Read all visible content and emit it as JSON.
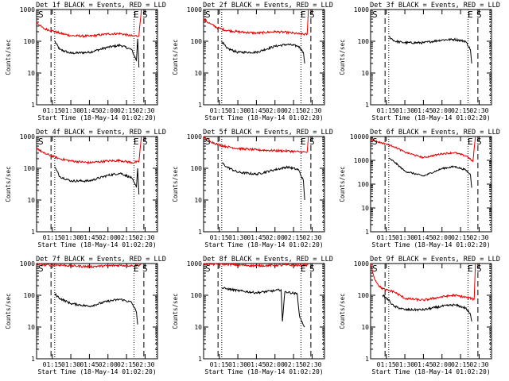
{
  "figure": {
    "colors": {
      "events": "#000000",
      "lld": "#e00000",
      "axis": "#000000",
      "background": "#ffffff"
    }
  },
  "chart_data": [
    {
      "type": "line",
      "title": "Det 1f BLACK = Events, RED = LLD",
      "xlabel": "Start Time (18-May-14 01:02:20)",
      "ylabel": "Counts/sec",
      "yscale": "log",
      "ylim": [
        1,
        1000
      ],
      "xlim": [
        "01:02:20",
        "02:40:00"
      ],
      "x_ticks": [
        "01:15",
        "01:30",
        "01:45",
        "02:00",
        "02:15",
        "02:30"
      ],
      "y_ticks": [
        "1",
        "10",
        "100",
        "1000"
      ],
      "markers": [
        "S",
        "E",
        "S"
      ],
      "dashed_lines": [
        "01:14",
        "02:29"
      ],
      "dotted_lines": [
        "01:17",
        "02:21",
        "02:39"
      ],
      "series": [
        {
          "name": "Events",
          "color": "#000000",
          "x": [
            "01:17",
            "01:21",
            "01:30",
            "01:45",
            "02:00",
            "02:10",
            "02:19",
            "02:23",
            "02:24",
            "02:25"
          ],
          "y": [
            100,
            55,
            42,
            45,
            65,
            75,
            55,
            25,
            120,
            15
          ]
        },
        {
          "name": "LLD",
          "color": "#e00000",
          "x": [
            "01:02",
            "01:08",
            "01:14",
            "01:21",
            "01:30",
            "01:45",
            "02:00",
            "02:10",
            "02:20",
            "02:25",
            "02:27"
          ],
          "y": [
            400,
            250,
            220,
            180,
            150,
            145,
            170,
            175,
            145,
            150,
            1000
          ]
        }
      ]
    },
    {
      "type": "line",
      "title": "Det 2f BLACK = Events, RED = LLD",
      "xlabel": "Start Time (18-May-14 01:02:20)",
      "ylabel": "Counts/sec",
      "yscale": "log",
      "ylim": [
        1,
        1000
      ],
      "xlim": [
        "01:02:20",
        "02:40:00"
      ],
      "x_ticks": [
        "01:15",
        "01:30",
        "01:45",
        "02:00",
        "02:15",
        "02:30"
      ],
      "y_ticks": [
        "1",
        "10",
        "100",
        "1000"
      ],
      "markers": [
        "S",
        "E",
        "S"
      ],
      "dashed_lines": [
        "01:14",
        "02:29"
      ],
      "dotted_lines": [
        "01:17",
        "02:21",
        "02:39"
      ],
      "series": [
        {
          "name": "Events",
          "color": "#000000",
          "x": [
            "01:17",
            "01:21",
            "01:30",
            "01:45",
            "02:00",
            "02:10",
            "02:19",
            "02:23",
            "02:24"
          ],
          "y": [
            100,
            60,
            45,
            45,
            70,
            80,
            70,
            45,
            20
          ]
        },
        {
          "name": "LLD",
          "color": "#e00000",
          "x": [
            "01:02",
            "01:08",
            "01:14",
            "01:21",
            "01:30",
            "01:45",
            "02:00",
            "02:10",
            "02:20",
            "02:26",
            "02:27"
          ],
          "y": [
            500,
            350,
            260,
            220,
            200,
            180,
            200,
            190,
            170,
            165,
            1000
          ]
        }
      ]
    },
    {
      "type": "line",
      "title": "Det 3f BLACK = Events, RED = LLD",
      "xlabel": "Start Time (18-May-14 01:02:20)",
      "ylabel": "Counts/sec",
      "yscale": "log",
      "ylim": [
        1,
        1000
      ],
      "xlim": [
        "01:02:20",
        "02:40:00"
      ],
      "x_ticks": [
        "01:15",
        "01:30",
        "01:45",
        "02:00",
        "02:15",
        "02:30"
      ],
      "y_ticks": [
        "1",
        "10",
        "100",
        "1000"
      ],
      "markers": [
        "S",
        "E",
        "S"
      ],
      "dashed_lines": [
        "01:14",
        "02:29"
      ],
      "dotted_lines": [
        "01:17",
        "02:21",
        "02:39"
      ],
      "series": [
        {
          "name": "Events",
          "color": "#000000",
          "x": [
            "01:17",
            "01:22",
            "01:30",
            "01:45",
            "02:00",
            "02:10",
            "02:19",
            "02:23",
            "02:24"
          ],
          "y": [
            140,
            100,
            90,
            90,
            110,
            115,
            100,
            55,
            20
          ]
        }
      ]
    },
    {
      "type": "line",
      "title": "Det 4f BLACK = Events, RED = LLD",
      "xlabel": "Start Time (18-May-14 01:02:20)",
      "ylabel": "Counts/sec",
      "yscale": "log",
      "ylim": [
        1,
        1000
      ],
      "xlim": [
        "01:02:20",
        "02:40:00"
      ],
      "x_ticks": [
        "01:15",
        "01:30",
        "01:45",
        "02:00",
        "02:15",
        "02:30"
      ],
      "y_ticks": [
        "1",
        "10",
        "100",
        "1000"
      ],
      "markers": [
        "S",
        "E",
        "S"
      ],
      "dashed_lines": [
        "01:14",
        "02:29"
      ],
      "dotted_lines": [
        "01:17",
        "02:21",
        "02:39"
      ],
      "series": [
        {
          "name": "Events",
          "color": "#000000",
          "x": [
            "01:17",
            "01:21",
            "01:30",
            "01:45",
            "02:00",
            "02:10",
            "02:19",
            "02:23",
            "02:24",
            "02:25"
          ],
          "y": [
            110,
            55,
            40,
            40,
            60,
            70,
            50,
            25,
            100,
            15
          ]
        },
        {
          "name": "LLD",
          "color": "#e00000",
          "x": [
            "01:02",
            "01:08",
            "01:14",
            "01:21",
            "01:30",
            "01:45",
            "02:00",
            "02:10",
            "02:20",
            "02:25",
            "02:27"
          ],
          "y": [
            450,
            300,
            250,
            200,
            170,
            150,
            170,
            175,
            150,
            160,
            1000
          ]
        }
      ]
    },
    {
      "type": "line",
      "title": "Det 5f BLACK = Events, RED = LLD",
      "xlabel": "Start Time (18-May-14 01:02:20)",
      "ylabel": "Counts/sec",
      "yscale": "log",
      "ylim": [
        1,
        1000
      ],
      "xlim": [
        "01:02:20",
        "02:40:00"
      ],
      "x_ticks": [
        "01:15",
        "01:30",
        "01:45",
        "02:00",
        "02:15",
        "02:30"
      ],
      "y_ticks": [
        "1",
        "10",
        "100",
        "1000"
      ],
      "markers": [
        "S",
        "E",
        "S"
      ],
      "dashed_lines": [
        "01:14",
        "02:29"
      ],
      "dotted_lines": [
        "01:17",
        "02:21",
        "02:39"
      ],
      "series": [
        {
          "name": "Events",
          "color": "#000000",
          "x": [
            "01:17",
            "01:21",
            "01:30",
            "01:45",
            "02:00",
            "02:10",
            "02:19",
            "02:23",
            "02:24"
          ],
          "y": [
            150,
            110,
            75,
            65,
            90,
            110,
            90,
            40,
            10
          ]
        },
        {
          "name": "LLD",
          "color": "#e00000",
          "x": [
            "01:02",
            "01:08",
            "01:14",
            "01:21",
            "01:30",
            "01:45",
            "02:00",
            "02:10",
            "02:20",
            "02:26",
            "02:27"
          ],
          "y": [
            1000,
            700,
            560,
            480,
            420,
            380,
            360,
            350,
            330,
            320,
            1000
          ]
        }
      ]
    },
    {
      "type": "line",
      "title": "Det 6f BLACK = Events, RED = LLD",
      "xlabel": "Start Time (18-May-14 01:02:20)",
      "ylabel": "Counts/sec",
      "yscale": "log",
      "ylim": [
        1,
        10000
      ],
      "xlim": [
        "01:02:20",
        "02:40:00"
      ],
      "x_ticks": [
        "01:15",
        "01:30",
        "01:45",
        "02:00",
        "02:15",
        "02:30"
      ],
      "y_ticks": [
        "1",
        "10",
        "100",
        "1000",
        "10000"
      ],
      "markers": [
        "S",
        "E",
        "S"
      ],
      "dashed_lines": [
        "01:14",
        "02:29"
      ],
      "dotted_lines": [
        "01:17",
        "02:21",
        "02:39"
      ],
      "series": [
        {
          "name": "Events",
          "color": "#000000",
          "x": [
            "01:17",
            "01:21",
            "01:30",
            "01:45",
            "02:00",
            "02:10",
            "02:19",
            "02:23",
            "02:24"
          ],
          "y": [
            1200,
            900,
            350,
            220,
            450,
            550,
            400,
            250,
            70
          ]
        },
        {
          "name": "LLD",
          "color": "#e00000",
          "x": [
            "01:02",
            "01:08",
            "01:14",
            "01:21",
            "01:30",
            "01:45",
            "02:00",
            "02:10",
            "02:20",
            "02:25",
            "02:27"
          ],
          "y": [
            8000,
            6000,
            5000,
            3800,
            2200,
            1300,
            1900,
            2100,
            1500,
            900,
            10000
          ]
        }
      ]
    },
    {
      "type": "line",
      "title": "Det 7f BLACK = Events, RED = LLD",
      "xlabel": "Start Time (18-May-14 01:02:20)",
      "ylabel": "Counts/sec",
      "yscale": "log",
      "ylim": [
        1,
        1000
      ],
      "xlim": [
        "01:02:20",
        "02:40:00"
      ],
      "x_ticks": [
        "01:15",
        "01:30",
        "01:45",
        "02:00",
        "02:15",
        "02:30"
      ],
      "y_ticks": [
        "1",
        "10",
        "100",
        "1000"
      ],
      "markers": [
        "S",
        "E",
        "S"
      ],
      "dashed_lines": [
        "01:14",
        "02:29"
      ],
      "dotted_lines": [
        "01:17",
        "02:21",
        "02:39"
      ],
      "series": [
        {
          "name": "Events",
          "color": "#000000",
          "x": [
            "01:17",
            "01:21",
            "01:30",
            "01:45",
            "02:00",
            "02:10",
            "02:19",
            "02:23",
            "02:24"
          ],
          "y": [
            110,
            80,
            55,
            45,
            65,
            75,
            60,
            30,
            12
          ]
        },
        {
          "name": "LLD",
          "color": "#e00000",
          "x": [
            "01:02",
            "01:08",
            "01:14",
            "01:21",
            "01:30",
            "01:45",
            "02:00",
            "02:10",
            "02:20",
            "02:26",
            "02:27"
          ],
          "y": [
            1000,
            900,
            900,
            900,
            850,
            800,
            850,
            880,
            850,
            900,
            1000
          ]
        }
      ]
    },
    {
      "type": "line",
      "title": "Det 8f BLACK = Events, RED = LLD",
      "xlabel": "Start Time (18-May-14 01:02:20)",
      "ylabel": "Counts/sec",
      "yscale": "log",
      "ylim": [
        1,
        1000
      ],
      "xlim": [
        "01:02:20",
        "02:40:00"
      ],
      "x_ticks": [
        "01:15",
        "01:30",
        "01:45",
        "02:00",
        "02:15",
        "02:30"
      ],
      "y_ticks": [
        "1",
        "10",
        "100",
        "1000"
      ],
      "markers": [
        "S",
        "E",
        "S"
      ],
      "dashed_lines": [
        "01:14",
        "02:29"
      ],
      "dotted_lines": [
        "01:17",
        "02:21",
        "02:39"
      ],
      "series": [
        {
          "name": "Events",
          "color": "#000000",
          "x": [
            "01:17",
            "01:21",
            "01:30",
            "01:45",
            "02:00",
            "02:05",
            "02:06",
            "02:08",
            "02:18",
            "02:20",
            "02:24"
          ],
          "y": [
            170,
            160,
            140,
            120,
            140,
            150,
            15,
            130,
            110,
            20,
            10
          ]
        },
        {
          "name": "LLD",
          "color": "#e00000",
          "x": [
            "01:02",
            "01:08",
            "01:14",
            "01:21",
            "01:30",
            "01:45",
            "02:00",
            "02:10",
            "02:20",
            "02:26",
            "02:27"
          ],
          "y": [
            1000,
            950,
            950,
            950,
            900,
            850,
            880,
            900,
            880,
            900,
            1000
          ]
        }
      ]
    },
    {
      "type": "line",
      "title": "Det 9f BLACK = Events, RED = LLD",
      "xlabel": "Start Time (18-May-14 01:02:20)",
      "ylabel": "Counts/sec",
      "yscale": "log",
      "ylim": [
        1,
        1000
      ],
      "xlim": [
        "01:02:20",
        "02:40:00"
      ],
      "x_ticks": [
        "01:15",
        "01:30",
        "01:45",
        "02:00",
        "02:15",
        "02:30"
      ],
      "y_ticks": [
        "1",
        "10",
        "100",
        "1000"
      ],
      "markers": [
        "S",
        "E",
        "S"
      ],
      "dashed_lines": [
        "01:14",
        "02:29"
      ],
      "dotted_lines": [
        "01:17",
        "02:21",
        "02:39"
      ],
      "series": [
        {
          "name": "Events",
          "color": "#000000",
          "x": [
            "01:12",
            "01:17",
            "01:21",
            "01:30",
            "01:45",
            "02:00",
            "02:10",
            "02:19",
            "02:23",
            "02:24"
          ],
          "y": [
            100,
            70,
            45,
            35,
            35,
            45,
            50,
            40,
            25,
            15
          ]
        },
        {
          "name": "LLD",
          "color": "#e00000",
          "x": [
            "01:02",
            "01:06",
            "01:10",
            "01:14",
            "01:21",
            "01:30",
            "01:45",
            "02:00",
            "02:10",
            "02:20",
            "02:26",
            "02:27"
          ],
          "y": [
            1000,
            300,
            180,
            150,
            130,
            80,
            70,
            90,
            100,
            85,
            75,
            1000
          ]
        }
      ]
    }
  ]
}
